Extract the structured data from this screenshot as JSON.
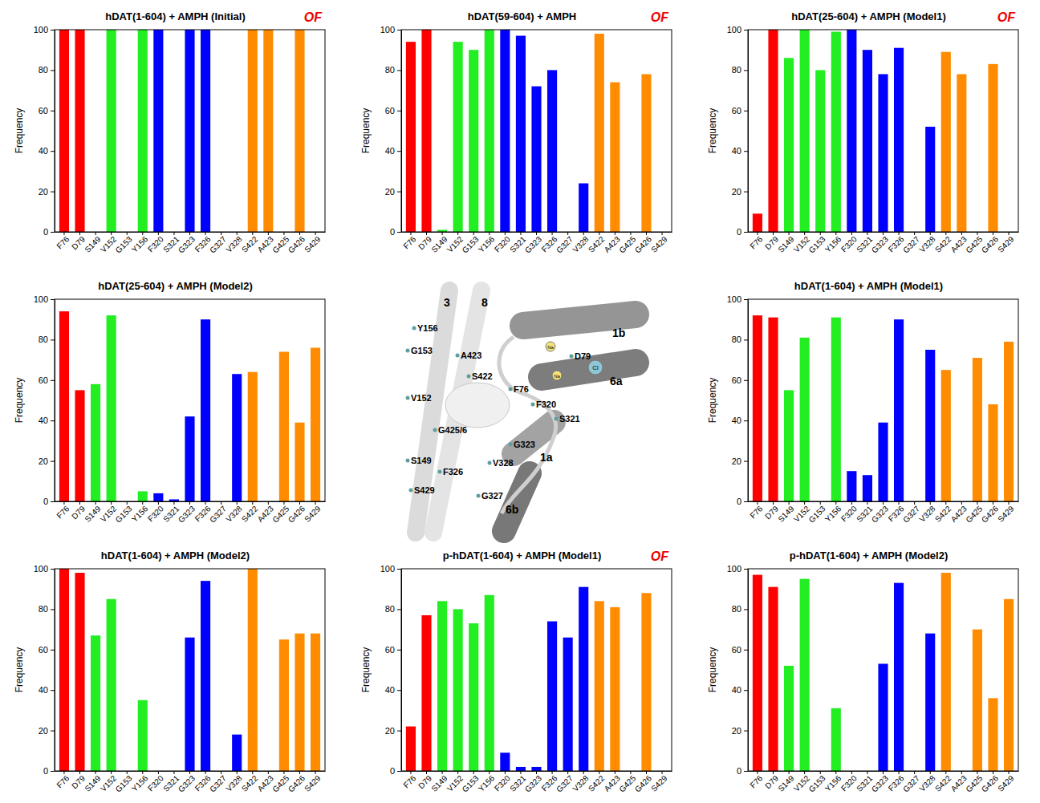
{
  "chart_data": [
    {
      "type": "bar",
      "title": "hDAT(1-604) + AMPH (Initial)",
      "annotation": "OF",
      "categories": [
        "F76",
        "D79",
        "S149",
        "V152",
        "G153",
        "Y156",
        "F320",
        "S321",
        "G323",
        "F326",
        "G327",
        "V328",
        "S422",
        "A423",
        "G425",
        "G426",
        "S429"
      ],
      "values": [
        100,
        100,
        0,
        100,
        0,
        100,
        100,
        0,
        100,
        100,
        0,
        0,
        100,
        100,
        0,
        100,
        0
      ],
      "colors": [
        "#ff0000",
        "#ff0000",
        "#22ee22",
        "#22ee22",
        "#22ee22",
        "#22ee22",
        "#0000ff",
        "#0000ff",
        "#0000ff",
        "#0000ff",
        "#0000ff",
        "#0000ff",
        "#ff8c00",
        "#ff8c00",
        "#ff8c00",
        "#ff8c00",
        "#ff8c00"
      ],
      "y_label": "Frequency",
      "ylim": [
        0,
        100
      ],
      "yticks": [
        0,
        20,
        40,
        60,
        80,
        100
      ]
    },
    {
      "type": "bar",
      "title": "hDAT(59-604) + AMPH",
      "annotation": "OF",
      "categories": [
        "F76",
        "D79",
        "S149",
        "V152",
        "G153",
        "Y156",
        "F320",
        "S321",
        "G323",
        "F326",
        "G327",
        "V328",
        "S422",
        "A423",
        "G425",
        "G426",
        "S429"
      ],
      "values": [
        94,
        100,
        1,
        94,
        90,
        100,
        100,
        97,
        72,
        80,
        0,
        24,
        98,
        74,
        0,
        78,
        0
      ],
      "colors": [
        "#ff0000",
        "#ff0000",
        "#22ee22",
        "#22ee22",
        "#22ee22",
        "#22ee22",
        "#0000ff",
        "#0000ff",
        "#0000ff",
        "#0000ff",
        "#0000ff",
        "#0000ff",
        "#ff8c00",
        "#ff8c00",
        "#ff8c00",
        "#ff8c00",
        "#ff8c00"
      ],
      "y_label": "Frequency",
      "ylim": [
        0,
        100
      ],
      "yticks": [
        0,
        20,
        40,
        60,
        80,
        100
      ]
    },
    {
      "type": "bar",
      "title": "hDAT(25-604) + AMPH (Model1)",
      "annotation": "OF",
      "categories": [
        "F76",
        "D79",
        "S149",
        "V152",
        "G153",
        "Y156",
        "F320",
        "S321",
        "G323",
        "F326",
        "G327",
        "V328",
        "S422",
        "A423",
        "G425",
        "G426",
        "S429"
      ],
      "values": [
        9,
        100,
        86,
        100,
        80,
        99,
        100,
        90,
        78,
        91,
        0,
        52,
        89,
        78,
        0,
        83,
        0
      ],
      "colors": [
        "#ff0000",
        "#ff0000",
        "#22ee22",
        "#22ee22",
        "#22ee22",
        "#22ee22",
        "#0000ff",
        "#0000ff",
        "#0000ff",
        "#0000ff",
        "#0000ff",
        "#0000ff",
        "#ff8c00",
        "#ff8c00",
        "#ff8c00",
        "#ff8c00",
        "#ff8c00"
      ],
      "y_label": "Frequency",
      "ylim": [
        0,
        100
      ],
      "yticks": [
        0,
        20,
        40,
        60,
        80,
        100
      ]
    },
    {
      "type": "bar",
      "title": "hDAT(25-604) + AMPH (Model2)",
      "categories": [
        "F76",
        "D79",
        "S149",
        "V152",
        "G153",
        "Y156",
        "F320",
        "S321",
        "G323",
        "F326",
        "G327",
        "V328",
        "S422",
        "A423",
        "G425",
        "G426",
        "S429"
      ],
      "values": [
        94,
        55,
        58,
        92,
        0,
        5,
        4,
        1,
        42,
        90,
        0,
        63,
        64,
        0,
        74,
        39,
        76
      ],
      "colors": [
        "#ff0000",
        "#ff0000",
        "#22ee22",
        "#22ee22",
        "#22ee22",
        "#22ee22",
        "#0000ff",
        "#0000ff",
        "#0000ff",
        "#0000ff",
        "#0000ff",
        "#0000ff",
        "#ff8c00",
        "#ff8c00",
        "#ff8c00",
        "#ff8c00",
        "#ff8c00"
      ],
      "y_label": "Frequency",
      "ylim": [
        0,
        100
      ],
      "yticks": [
        0,
        20,
        40,
        60,
        80,
        100
      ]
    },
    {
      "type": "bar",
      "title": "hDAT(1-604) + AMPH (Model1)",
      "categories": [
        "F76",
        "D79",
        "S149",
        "V152",
        "G153",
        "Y156",
        "F320",
        "S321",
        "G323",
        "F326",
        "G327",
        "V328",
        "S422",
        "A423",
        "G425",
        "G426",
        "S429"
      ],
      "values": [
        92,
        91,
        55,
        81,
        0,
        91,
        15,
        13,
        39,
        90,
        0,
        75,
        65,
        0,
        71,
        48,
        79
      ],
      "colors": [
        "#ff0000",
        "#ff0000",
        "#22ee22",
        "#22ee22",
        "#22ee22",
        "#22ee22",
        "#0000ff",
        "#0000ff",
        "#0000ff",
        "#0000ff",
        "#0000ff",
        "#0000ff",
        "#ff8c00",
        "#ff8c00",
        "#ff8c00",
        "#ff8c00",
        "#ff8c00"
      ],
      "y_label": "Frequency",
      "ylim": [
        0,
        100
      ],
      "yticks": [
        0,
        20,
        40,
        60,
        80,
        100
      ]
    },
    {
      "type": "bar",
      "title": "hDAT(1-604) + AMPH (Model2)",
      "categories": [
        "F76",
        "D79",
        "S149",
        "V152",
        "G153",
        "Y156",
        "F320",
        "S321",
        "G323",
        "F326",
        "G327",
        "V328",
        "S422",
        "A423",
        "G425",
        "G426",
        "S429"
      ],
      "values": [
        100,
        98,
        67,
        85,
        0,
        35,
        0,
        0,
        66,
        94,
        0,
        18,
        100,
        0,
        65,
        68,
        68
      ],
      "colors": [
        "#ff0000",
        "#ff0000",
        "#22ee22",
        "#22ee22",
        "#22ee22",
        "#22ee22",
        "#0000ff",
        "#0000ff",
        "#0000ff",
        "#0000ff",
        "#0000ff",
        "#0000ff",
        "#ff8c00",
        "#ff8c00",
        "#ff8c00",
        "#ff8c00",
        "#ff8c00"
      ],
      "y_label": "Frequency",
      "ylim": [
        0,
        100
      ],
      "yticks": [
        0,
        20,
        40,
        60,
        80,
        100
      ]
    },
    {
      "type": "bar",
      "title": "p-hDAT(1-604) + AMPH (Model1)",
      "annotation": "OF",
      "categories": [
        "F76",
        "D79",
        "S149",
        "V152",
        "G153",
        "Y156",
        "F320",
        "S321",
        "G323",
        "F326",
        "G327",
        "V328",
        "S422",
        "A423",
        "G425",
        "G426",
        "S429"
      ],
      "values": [
        22,
        77,
        84,
        80,
        73,
        87,
        9,
        2,
        2,
        74,
        66,
        91,
        84,
        81,
        0,
        88,
        0
      ],
      "colors": [
        "#ff0000",
        "#ff0000",
        "#22ee22",
        "#22ee22",
        "#22ee22",
        "#22ee22",
        "#0000ff",
        "#0000ff",
        "#0000ff",
        "#0000ff",
        "#0000ff",
        "#0000ff",
        "#ff8c00",
        "#ff8c00",
        "#ff8c00",
        "#ff8c00",
        "#ff8c00"
      ],
      "y_label": "Frequency",
      "ylim": [
        0,
        100
      ],
      "yticks": [
        0,
        20,
        40,
        60,
        80,
        100
      ]
    },
    {
      "type": "bar",
      "title": "p-hDAT(1-604) + AMPH (Model2)",
      "categories": [
        "F76",
        "D79",
        "S149",
        "V152",
        "G153",
        "Y156",
        "F320",
        "S321",
        "G323",
        "F326",
        "G327",
        "V328",
        "S422",
        "A423",
        "G425",
        "G426",
        "S429"
      ],
      "values": [
        97,
        91,
        52,
        95,
        0,
        31,
        0,
        0,
        53,
        93,
        0,
        68,
        98,
        0,
        70,
        36,
        85
      ],
      "colors": [
        "#ff0000",
        "#ff0000",
        "#22ee22",
        "#22ee22",
        "#22ee22",
        "#22ee22",
        "#0000ff",
        "#0000ff",
        "#0000ff",
        "#0000ff",
        "#0000ff",
        "#0000ff",
        "#ff8c00",
        "#ff8c00",
        "#ff8c00",
        "#ff8c00",
        "#ff8c00"
      ],
      "y_label": "Frequency",
      "ylim": [
        0,
        100
      ],
      "yticks": [
        0,
        20,
        40,
        60,
        80,
        100
      ]
    }
  ],
  "diagram": {
    "helices": [
      "3",
      "8",
      "1b",
      "6a",
      "1a",
      "6b"
    ],
    "residues": [
      "Y156",
      "G153",
      "A423",
      "D79",
      "S422",
      "F76",
      "S321",
      "F320",
      "V152",
      "G425/6",
      "S149",
      "F326",
      "V328",
      "G323",
      "S429",
      "G327"
    ],
    "ions": [
      "Na",
      "Na",
      "Cl"
    ]
  }
}
